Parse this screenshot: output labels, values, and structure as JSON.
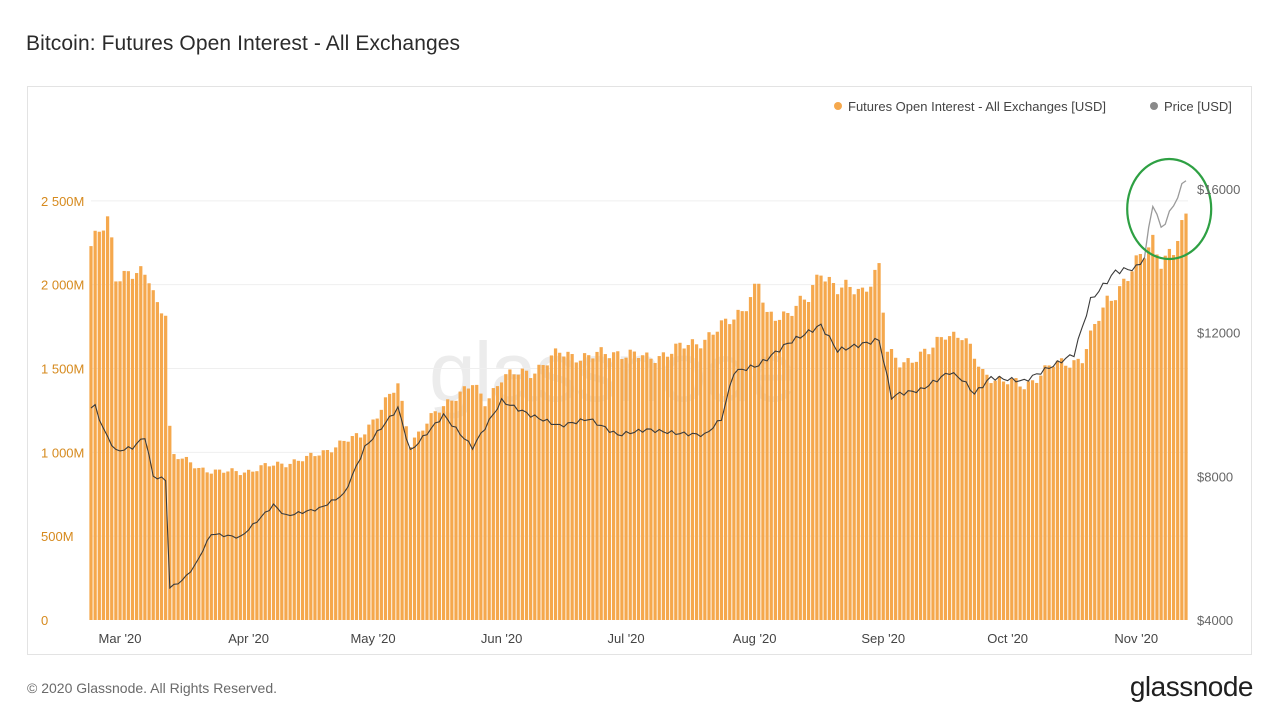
{
  "page_title": "Bitcoin: Futures Open Interest - All Exchanges",
  "footer": {
    "copyright": "© 2020 Glassnode. All Rights Reserved.",
    "logo": "glassnode"
  },
  "watermark": "glassnode",
  "colors": {
    "bars": "#f5a84d",
    "price_line": "#3a3a3a",
    "price_line_recent": "#9a9a9a",
    "highlight_circle": "#2ea043",
    "left_axis_text": "#d68a1e",
    "right_axis_text": "#666666",
    "legend_price_dot": "#8a8a8a"
  },
  "chart_data": {
    "type": "bar",
    "title": "Bitcoin: Futures Open Interest - All Exchanges",
    "legend": [
      {
        "label": "Futures Open Interest - All Exchanges [USD]",
        "color": "#f5a84d",
        "placement": "top-right"
      },
      {
        "label": "Price [USD]",
        "color": "#8a8a8a",
        "placement": "top-right"
      }
    ],
    "x_ticks": [
      {
        "label": "Mar '20",
        "date": "2020-03-01"
      },
      {
        "label": "Apr '20",
        "date": "2020-04-01"
      },
      {
        "label": "May '20",
        "date": "2020-05-01"
      },
      {
        "label": "Jun '20",
        "date": "2020-06-01"
      },
      {
        "label": "Jul '20",
        "date": "2020-07-01"
      },
      {
        "label": "Aug '20",
        "date": "2020-08-01"
      },
      {
        "label": "Sep '20",
        "date": "2020-09-01"
      },
      {
        "label": "Oct '20",
        "date": "2020-10-01"
      },
      {
        "label": "Nov '20",
        "date": "2020-11-01"
      }
    ],
    "x_range": [
      "2020-02-23",
      "2020-11-13"
    ],
    "left_axis": {
      "label": "",
      "range": [
        0,
        3000000000
      ],
      "ticks": [
        {
          "value": 0,
          "label": "0"
        },
        {
          "value": 500000000,
          "label": "500M"
        },
        {
          "value": 1000000000,
          "label": "1 000M"
        },
        {
          "value": 1500000000,
          "label": "1 500M"
        },
        {
          "value": 2000000000,
          "label": "2 000M"
        },
        {
          "value": 2500000000,
          "label": "2 500M"
        }
      ]
    },
    "right_axis": {
      "label": "",
      "scale": "linear",
      "range": [
        4000,
        18000
      ],
      "ticks": [
        {
          "value": 4000,
          "label": "$4000"
        },
        {
          "value": 8000,
          "label": "$8000"
        },
        {
          "value": 12000,
          "label": "$12000"
        },
        {
          "value": 16000,
          "label": "$16000"
        }
      ]
    },
    "grid": true,
    "annotations": [
      {
        "type": "circle",
        "around": "price peak",
        "date_range": [
          "2020-11-03",
          "2020-11-12"
        ],
        "color": "#2ea043"
      }
    ],
    "open_interest_anchors": [
      [
        "2020-02-23",
        2230000000
      ],
      [
        "2020-02-25",
        2300000000
      ],
      [
        "2020-02-27",
        2370000000
      ],
      [
        "2020-02-28",
        2250000000
      ],
      [
        "2020-02-29",
        2060000000
      ],
      [
        "2020-03-03",
        2080000000
      ],
      [
        "2020-03-06",
        2050000000
      ],
      [
        "2020-03-08",
        2030000000
      ],
      [
        "2020-03-10",
        1880000000
      ],
      [
        "2020-03-12",
        1860000000
      ],
      [
        "2020-03-13",
        1150000000
      ],
      [
        "2020-03-14",
        980000000
      ],
      [
        "2020-03-20",
        910000000
      ],
      [
        "2020-03-25",
        880000000
      ],
      [
        "2020-04-01",
        890000000
      ],
      [
        "2020-04-08",
        930000000
      ],
      [
        "2020-04-15",
        960000000
      ],
      [
        "2020-04-22",
        1040000000
      ],
      [
        "2020-04-28",
        1100000000
      ],
      [
        "2020-05-03",
        1260000000
      ],
      [
        "2020-05-07",
        1400000000
      ],
      [
        "2020-05-10",
        1060000000
      ],
      [
        "2020-05-15",
        1200000000
      ],
      [
        "2020-05-20",
        1330000000
      ],
      [
        "2020-05-25",
        1400000000
      ],
      [
        "2020-05-28",
        1300000000
      ],
      [
        "2020-06-01",
        1450000000
      ],
      [
        "2020-06-08",
        1480000000
      ],
      [
        "2020-06-15",
        1590000000
      ],
      [
        "2020-06-22",
        1570000000
      ],
      [
        "2020-06-29",
        1600000000
      ],
      [
        "2020-07-06",
        1560000000
      ],
      [
        "2020-07-13",
        1610000000
      ],
      [
        "2020-07-20",
        1680000000
      ],
      [
        "2020-07-25",
        1760000000
      ],
      [
        "2020-07-29",
        1860000000
      ],
      [
        "2020-08-02",
        2000000000
      ],
      [
        "2020-08-04",
        1800000000
      ],
      [
        "2020-08-09",
        1840000000
      ],
      [
        "2020-08-14",
        1910000000
      ],
      [
        "2020-08-17",
        2100000000
      ],
      [
        "2020-08-21",
        1970000000
      ],
      [
        "2020-08-27",
        1970000000
      ],
      [
        "2020-08-31",
        2100000000
      ],
      [
        "2020-09-02",
        1590000000
      ],
      [
        "2020-09-05",
        1540000000
      ],
      [
        "2020-09-12",
        1590000000
      ],
      [
        "2020-09-16",
        1720000000
      ],
      [
        "2020-09-20",
        1690000000
      ],
      [
        "2020-09-25",
        1480000000
      ],
      [
        "2020-09-30",
        1420000000
      ],
      [
        "2020-10-05",
        1400000000
      ],
      [
        "2020-10-12",
        1520000000
      ],
      [
        "2020-10-19",
        1560000000
      ],
      [
        "2020-10-23",
        1800000000
      ],
      [
        "2020-10-25",
        1910000000
      ],
      [
        "2020-10-30",
        2040000000
      ],
      [
        "2020-11-03",
        2190000000
      ],
      [
        "2020-11-05",
        2280000000
      ],
      [
        "2020-11-07",
        2150000000
      ],
      [
        "2020-11-10",
        2180000000
      ],
      [
        "2020-11-11",
        2260000000
      ],
      [
        "2020-11-13",
        2400000000
      ]
    ],
    "price_anchors": [
      [
        "2020-02-23",
        9900
      ],
      [
        "2020-02-24",
        9950
      ],
      [
        "2020-02-26",
        9300
      ],
      [
        "2020-02-29",
        8700
      ],
      [
        "2020-03-04",
        8800
      ],
      [
        "2020-03-07",
        9100
      ],
      [
        "2020-03-09",
        8000
      ],
      [
        "2020-03-12",
        7900
      ],
      [
        "2020-03-13",
        4900
      ],
      [
        "2020-03-16",
        5100
      ],
      [
        "2020-03-19",
        5500
      ],
      [
        "2020-03-23",
        6400
      ],
      [
        "2020-03-30",
        6300
      ],
      [
        "2020-04-07",
        7200
      ],
      [
        "2020-04-10",
        6900
      ],
      [
        "2020-04-18",
        7100
      ],
      [
        "2020-04-24",
        7500
      ],
      [
        "2020-04-29",
        8800
      ],
      [
        "2020-05-07",
        9900
      ],
      [
        "2020-05-10",
        8700
      ],
      [
        "2020-05-18",
        9700
      ],
      [
        "2020-05-25",
        8800
      ],
      [
        "2020-06-01",
        10100
      ],
      [
        "2020-06-08",
        9700
      ],
      [
        "2020-06-15",
        9400
      ],
      [
        "2020-06-22",
        9600
      ],
      [
        "2020-06-29",
        9150
      ],
      [
        "2020-07-06",
        9300
      ],
      [
        "2020-07-13",
        9200
      ],
      [
        "2020-07-20",
        9150
      ],
      [
        "2020-07-24",
        9600
      ],
      [
        "2020-07-27",
        10900
      ],
      [
        "2020-08-02",
        11100
      ],
      [
        "2020-08-09",
        11700
      ],
      [
        "2020-08-17",
        12200
      ],
      [
        "2020-08-21",
        11500
      ],
      [
        "2020-08-31",
        11800
      ],
      [
        "2020-09-03",
        10200
      ],
      [
        "2020-09-05",
        10300
      ],
      [
        "2020-09-10",
        10400
      ],
      [
        "2020-09-17",
        10900
      ],
      [
        "2020-09-20",
        10700
      ],
      [
        "2020-09-23",
        10300
      ],
      [
        "2020-09-27",
        10750
      ],
      [
        "2020-10-05",
        10650
      ],
      [
        "2020-10-09",
        10900
      ],
      [
        "2020-10-17",
        11400
      ],
      [
        "2020-10-21",
        12900
      ],
      [
        "2020-10-27",
        13700
      ],
      [
        "2020-11-01",
        13800
      ],
      [
        "2020-11-03",
        14100
      ],
      [
        "2020-11-05",
        15600
      ],
      [
        "2020-11-07",
        14900
      ],
      [
        "2020-11-09",
        15300
      ],
      [
        "2020-11-11",
        15800
      ],
      [
        "2020-11-13",
        16300
      ]
    ]
  }
}
